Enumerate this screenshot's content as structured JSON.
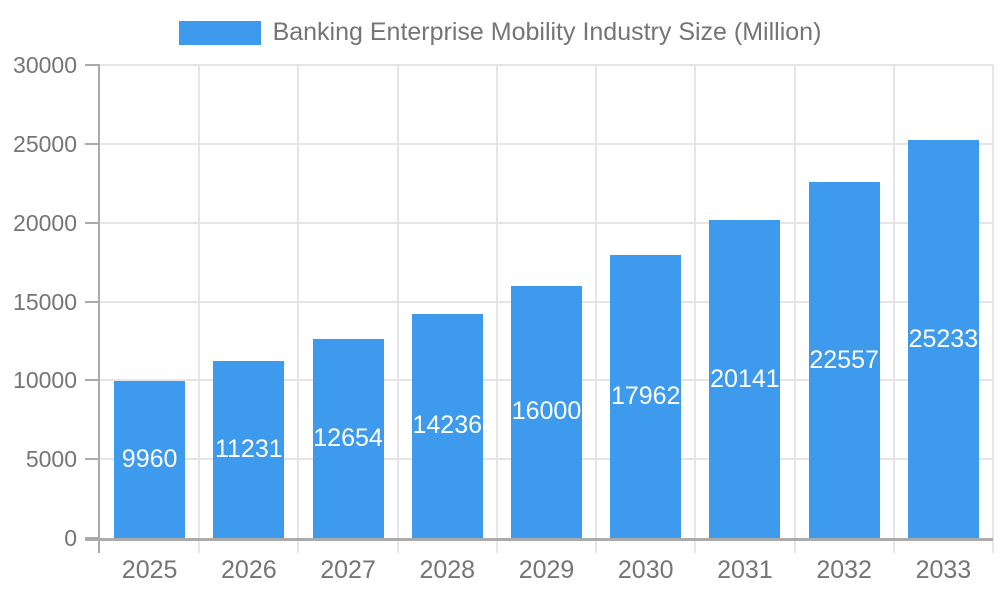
{
  "chart_data": {
    "type": "bar",
    "title": "Banking Enterprise Mobility Industry Size (Million)",
    "categories": [
      "2025",
      "2026",
      "2027",
      "2028",
      "2029",
      "2030",
      "2031",
      "2032",
      "2033"
    ],
    "values": [
      9960,
      11231,
      12654,
      14236,
      16000,
      17962,
      20141,
      22557,
      25233
    ],
    "xlabel": "",
    "ylabel": "",
    "ylim": [
      0,
      30000
    ],
    "yticks": [
      0,
      5000,
      10000,
      15000,
      20000,
      25000,
      30000
    ],
    "grid": true,
    "legend_position": "top",
    "data_labels": "inside-center"
  },
  "legend": {
    "label": "Banking Enterprise Mobility Industry Size (Million)"
  },
  "colors": {
    "bar": "#3D9AEC",
    "grid_line": "#E5E5E5",
    "axis_line": "#ABABAB",
    "axis_text": "#757575",
    "bar_label": "#FFFFFF",
    "background": "#FFFFFF"
  }
}
